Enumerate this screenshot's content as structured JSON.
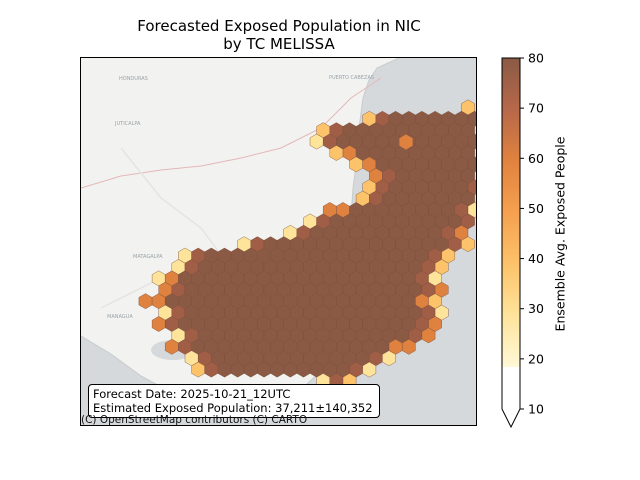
{
  "title_line1": "Forecasted Exposed Population in NIC",
  "title_line2": "by TC MELISSA",
  "info": {
    "forecast_date": "Forecast Date: 2025-10-21_12UTC",
    "exposed_population": "Estimated Exposed Population: 37,211±140,352"
  },
  "attribution": "(C) OpenStreetMap contributors (C) CARTO",
  "basemap_labels": [
    "HONDURAS",
    "PUERTO CABEZAS",
    "JUTICALPA",
    "MATAGALPA",
    "MANAGUA"
  ],
  "colorbar": {
    "label": "Ensemble Avg. Exposed People",
    "ticks": [
      "10",
      "20",
      "30",
      "40",
      "50",
      "60",
      "70",
      "80"
    ],
    "min": 10,
    "max": 80,
    "extend": "min",
    "colors": [
      "#fff8d6",
      "#fee39a",
      "#fdc36b",
      "#f5a04f",
      "#e0823f",
      "#c36c42",
      "#a15e46",
      "#8a5a45"
    ]
  }
}
